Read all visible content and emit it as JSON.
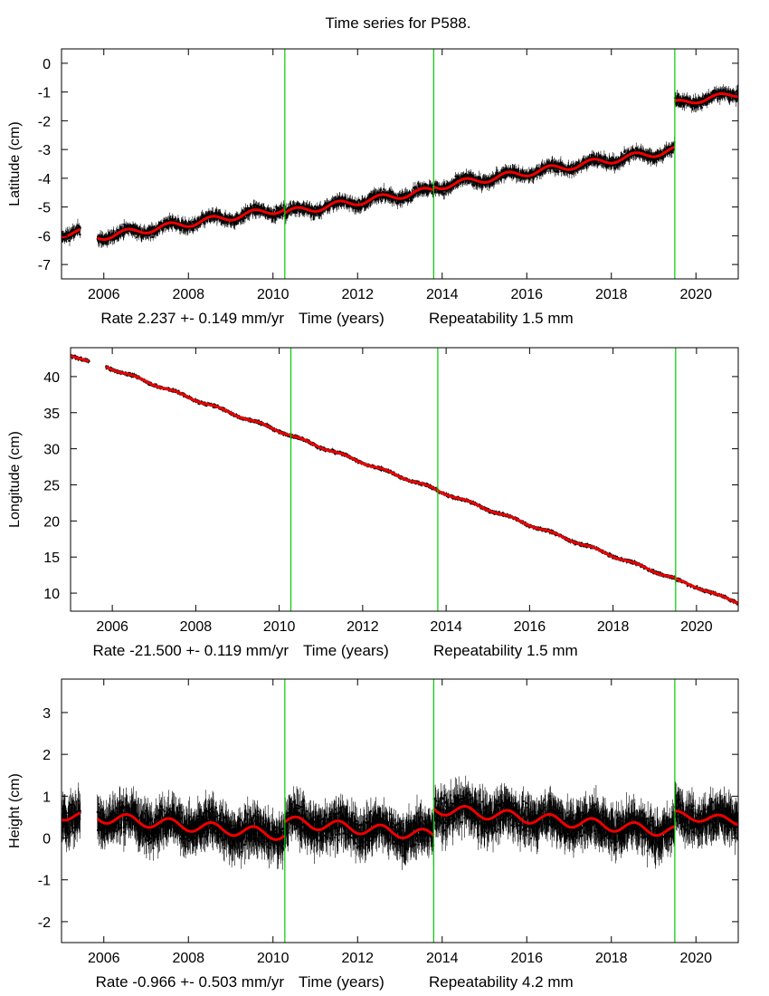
{
  "title": "Time series for P588.",
  "colors": {
    "fit": "#ee0000",
    "offsets": "#00cc00",
    "data": "#000000"
  },
  "chart_data": [
    {
      "type": "scatter",
      "ylabel": "Latitude (cm)",
      "xlabel_rate": "Rate 2.237 +- 0.149 mm/yr",
      "xlabel_axis": "Time (years)",
      "xlabel_repeat": "Repeatability 1.5 mm",
      "xlim": [
        2005.0,
        2021.0
      ],
      "ylim": [
        -7.5,
        0.5
      ],
      "xticks": [
        2006,
        2008,
        2010,
        2012,
        2014,
        2016,
        2018,
        2020
      ],
      "yticks": [
        0,
        -1,
        -2,
        -3,
        -4,
        -5,
        -6,
        -7
      ],
      "offsets": [
        2010.28,
        2013.8,
        2019.5
      ],
      "gaps": [
        [
          2005.45,
          2005.85
        ]
      ],
      "fit": [
        {
          "x": [
            2005.0,
            2005.45
          ],
          "y0": -5.95,
          "slope": 0.2237,
          "amp": 0.1
        },
        {
          "x": [
            2005.85,
            2010.28
          ],
          "y0": -6.05,
          "slope": 0.2237,
          "amp": 0.12
        },
        {
          "x": [
            2010.28,
            2013.8
          ],
          "y0": -5.2,
          "slope": 0.2237,
          "amp": 0.12
        },
        {
          "x": [
            2013.8,
            2019.5
          ],
          "y0": -4.3,
          "slope": 0.2237,
          "amp": 0.12
        },
        {
          "x": [
            2019.5,
            2021.0
          ],
          "y0": -1.4,
          "slope": 0.2237,
          "amp": 0.1
        }
      ],
      "noise": 0.25
    },
    {
      "type": "scatter",
      "ylabel": "Longitude (cm)",
      "xlabel_rate": "Rate -21.500 +- 0.119 mm/yr",
      "xlabel_axis": "Time (years)",
      "xlabel_repeat": "Repeatability 1.5 mm",
      "xlim": [
        2005.0,
        2021.0
      ],
      "ylim": [
        7.5,
        44.0
      ],
      "xticks": [
        2006,
        2008,
        2010,
        2012,
        2014,
        2016,
        2018,
        2020
      ],
      "yticks": [
        40,
        35,
        30,
        25,
        20,
        15,
        10
      ],
      "offsets": [
        2010.28,
        2013.8,
        2019.5
      ],
      "gaps": [
        [
          2005.45,
          2005.85
        ]
      ],
      "fit": [
        {
          "x": [
            2005.0,
            2005.45
          ],
          "y0": 43.0,
          "slope": -2.15,
          "amp": 0.1
        },
        {
          "x": [
            2005.85,
            2010.28
          ],
          "y0": 41.4,
          "slope": -2.15,
          "amp": 0.15
        },
        {
          "x": [
            2010.28,
            2013.8
          ],
          "y0": 31.8,
          "slope": -2.15,
          "amp": 0.15
        },
        {
          "x": [
            2013.8,
            2019.5
          ],
          "y0": 24.2,
          "slope": -2.15,
          "amp": 0.15
        },
        {
          "x": [
            2019.5,
            2021.0
          ],
          "y0": 11.9,
          "slope": -2.15,
          "amp": 0.1
        }
      ],
      "noise": 0.3
    },
    {
      "type": "scatter",
      "ylabel": "Height (cm)",
      "xlabel_rate": "Rate -0.966 +- 0.503 mm/yr",
      "xlabel_axis": "Time (years)",
      "xlabel_repeat": "Repeatability 4.2 mm",
      "xlim": [
        2005.0,
        2021.0
      ],
      "ylim": [
        -2.5,
        3.8
      ],
      "xticks": [
        2006,
        2008,
        2010,
        2012,
        2014,
        2016,
        2018,
        2020
      ],
      "yticks": [
        3,
        2,
        1,
        0,
        -1,
        -2
      ],
      "offsets": [
        2010.28,
        2013.8,
        2019.5
      ],
      "gaps": [
        [
          2005.45,
          2005.85
        ]
      ],
      "fit": [
        {
          "x": [
            2005.0,
            2005.45
          ],
          "y0": 0.55,
          "slope": -0.0966,
          "amp": 0.12
        },
        {
          "x": [
            2005.85,
            2010.28
          ],
          "y0": 0.5,
          "slope": -0.0966,
          "amp": 0.13
        },
        {
          "x": [
            2010.28,
            2013.8
          ],
          "y0": 0.4,
          "slope": -0.0966,
          "amp": 0.13
        },
        {
          "x": [
            2013.8,
            2019.5
          ],
          "y0": 0.7,
          "slope": -0.0966,
          "amp": 0.13
        },
        {
          "x": [
            2019.5,
            2021.0
          ],
          "y0": 0.55,
          "slope": -0.0966,
          "amp": 0.1
        }
      ],
      "noise": 0.55
    }
  ]
}
